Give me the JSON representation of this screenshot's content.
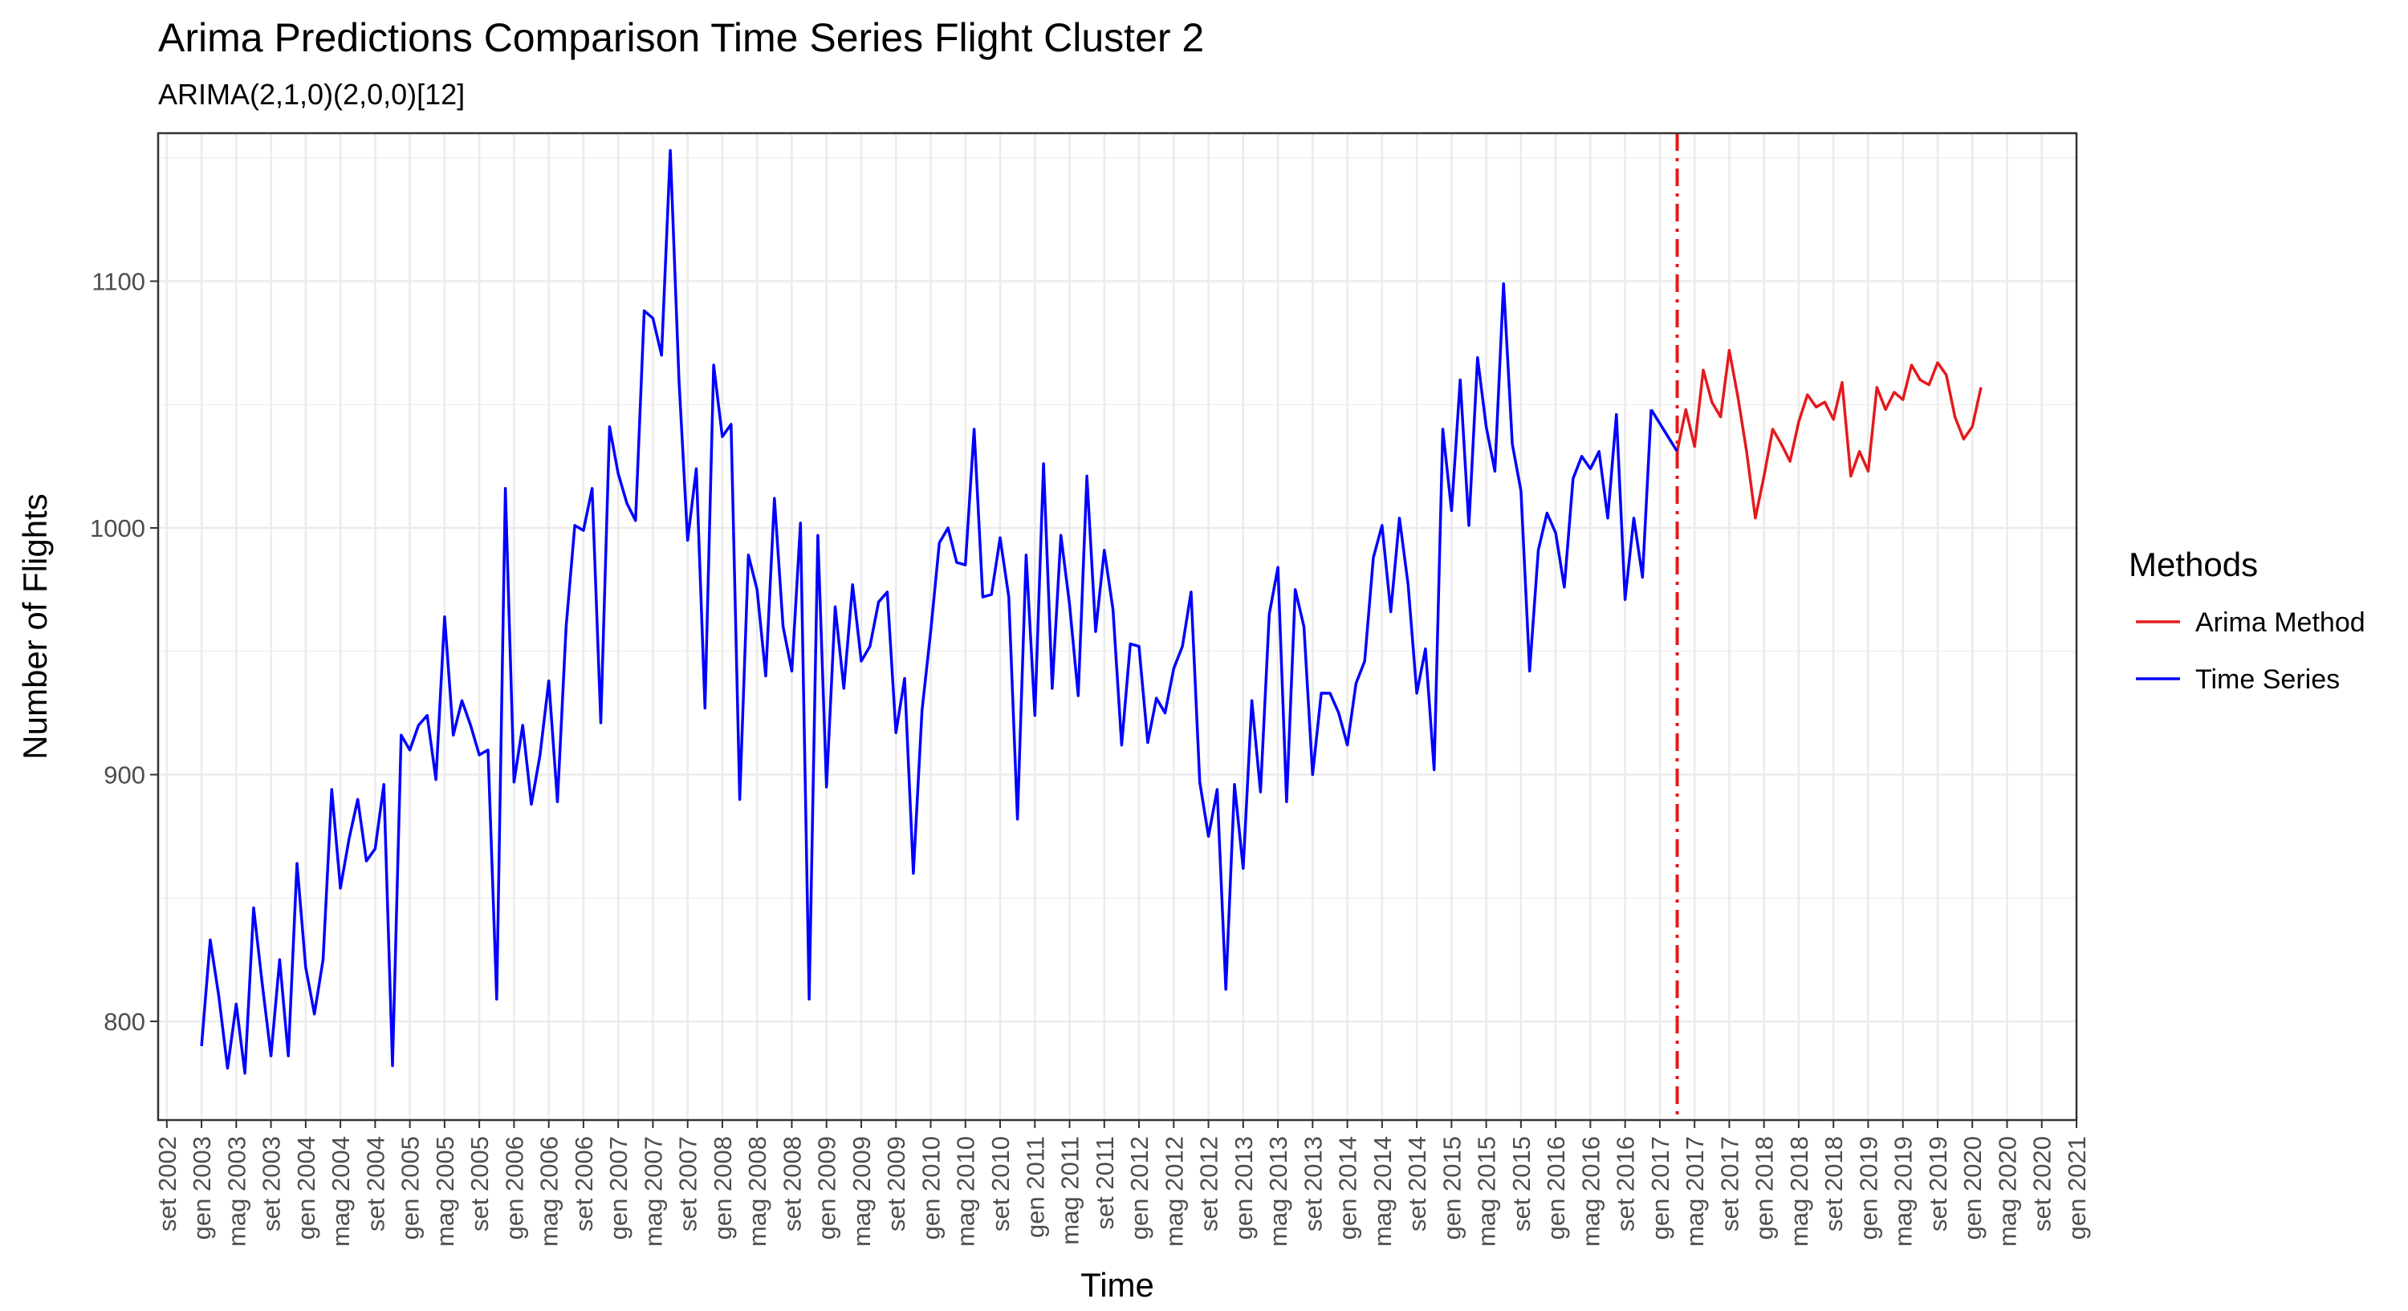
{
  "chart_data": {
    "type": "line",
    "title": "Arima Predictions Comparison Time Series Flight Cluster 2",
    "subtitle": "ARIMA(2,1,0)(2,0,0)[12]",
    "xlabel": "Time",
    "ylabel": "Number of Flights",
    "xlim": [
      "2002-08",
      "2021-01"
    ],
    "ylim": [
      760,
      1160
    ],
    "y_ticks": [
      800,
      900,
      1000,
      1100
    ],
    "x_tick_labels": [
      "set 2002",
      "gen 2003",
      "mag 2003",
      "set 2003",
      "gen 2004",
      "mag 2004",
      "set 2004",
      "gen 2005",
      "mag 2005",
      "set 2005",
      "gen 2006",
      "mag 2006",
      "set 2006",
      "gen 2007",
      "mag 2007",
      "set 2007",
      "gen 2008",
      "mag 2008",
      "set 2008",
      "gen 2009",
      "mag 2009",
      "set 2009",
      "gen 2010",
      "mag 2010",
      "set 2010",
      "gen 2011",
      "mag 2011",
      "set 2011",
      "gen 2012",
      "mag 2012",
      "set 2012",
      "gen 2013",
      "mag 2013",
      "set 2013",
      "gen 2014",
      "mag 2014",
      "set 2014",
      "gen 2015",
      "mag 2015",
      "set 2015",
      "gen 2016",
      "mag 2016",
      "set 2016",
      "gen 2017",
      "mag 2017",
      "set 2017",
      "gen 2018",
      "mag 2018",
      "set 2018",
      "gen 2019",
      "mag 2019",
      "set 2019",
      "gen 2020",
      "mag 2020",
      "set 2020",
      "gen 2021"
    ],
    "grid": true,
    "forecast_start_line": {
      "x": "2017-03",
      "color": "#e41a1c",
      "style": "dash-dot"
    },
    "legend": {
      "title": "Methods",
      "position": "right"
    },
    "series": [
      {
        "name": "Time Series",
        "color": "#0000ff",
        "start": "2003-01",
        "values": [
          790,
          833,
          810,
          781,
          807,
          779,
          846,
          815,
          786,
          825,
          786,
          864,
          822,
          803,
          825,
          894,
          854,
          874,
          890,
          865,
          870,
          896,
          782,
          916,
          910,
          920,
          924,
          898,
          964,
          916,
          930,
          920,
          908,
          910,
          809,
          1016,
          897,
          920,
          888,
          908,
          938,
          889,
          960,
          1001,
          999,
          1016,
          921,
          1041,
          1022,
          1010,
          1003,
          1088,
          1085,
          1070,
          1153,
          1060,
          995,
          1024,
          927,
          1066,
          1037,
          1042,
          890,
          989,
          975,
          940,
          1012,
          960,
          942,
          1002,
          809,
          997,
          895,
          968,
          935,
          977,
          946,
          952,
          970,
          974,
          917,
          939,
          860,
          926,
          958,
          994,
          1000,
          986,
          985,
          1040,
          972,
          973,
          996,
          972,
          882,
          989,
          924,
          1026,
          935,
          997,
          969,
          932,
          1021,
          958,
          991,
          967,
          912,
          953,
          952,
          913,
          931,
          925,
          943,
          952,
          974,
          897,
          875,
          894,
          813,
          896,
          862,
          930,
          893,
          965,
          984,
          889,
          975,
          960,
          900,
          933,
          933,
          925,
          912,
          937,
          946,
          988,
          1001,
          966,
          1004,
          977,
          933,
          951,
          902,
          1040,
          1007,
          1060,
          1001,
          1069,
          1041,
          1023,
          1099,
          1034,
          1015,
          942,
          991,
          1006,
          998,
          976,
          1020,
          1029,
          1024,
          1031,
          1004,
          1046,
          971,
          1004,
          980,
          1048
        ]
      },
      {
        "name": "Arima Method",
        "color": "#e41a1c",
        "start": "2017-03",
        "values": [
          1031,
          1048,
          1033,
          1064,
          1051,
          1045,
          1072,
          1053,
          1031,
          1004,
          1021,
          1040,
          1034,
          1027,
          1043,
          1054,
          1049,
          1051,
          1044,
          1059,
          1021,
          1031,
          1023,
          1057,
          1048,
          1055,
          1052,
          1066,
          1060,
          1058,
          1067,
          1062,
          1045,
          1036,
          1041,
          1057
        ]
      }
    ]
  }
}
